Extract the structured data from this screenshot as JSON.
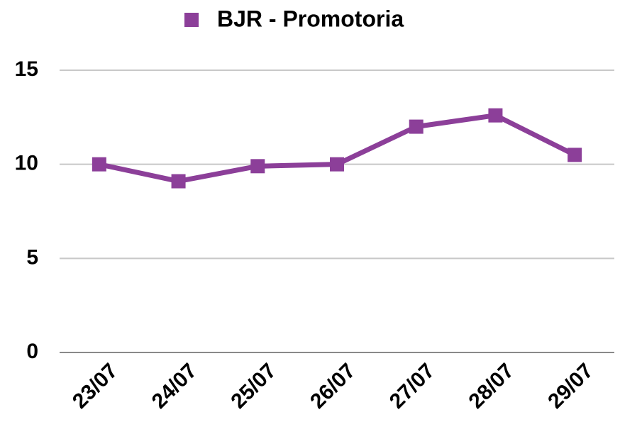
{
  "chart_data": {
    "type": "line",
    "categories": [
      "23/07",
      "24/07",
      "25/07",
      "26/07",
      "27/07",
      "28/07",
      "29/07"
    ],
    "series": [
      {
        "name": "BJR - Promotoria",
        "color": "#8c3f99",
        "values": [
          10.0,
          9.1,
          9.9,
          10.0,
          12.0,
          12.6,
          10.5
        ]
      }
    ],
    "ylim": [
      0,
      15
    ],
    "yticks": [
      0,
      5,
      10,
      15
    ],
    "grid": true,
    "legend": "top"
  }
}
